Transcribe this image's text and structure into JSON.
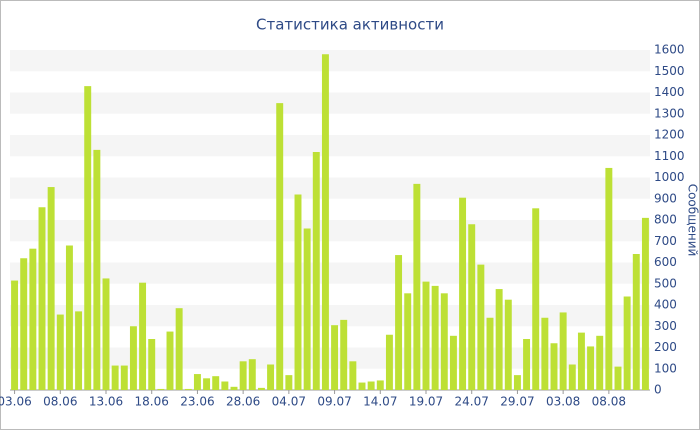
{
  "chart_data": {
    "type": "bar",
    "title": "Статистика активности",
    "y_label": "Сообщений",
    "categories": [
      "03.06",
      null,
      null,
      null,
      null,
      "08.06",
      null,
      null,
      null,
      null,
      "13.06",
      null,
      null,
      null,
      null,
      "18.06",
      null,
      null,
      null,
      null,
      "23.06",
      null,
      null,
      null,
      null,
      "28.06",
      null,
      null,
      null,
      null,
      "04.07",
      null,
      null,
      null,
      null,
      "09.07",
      null,
      null,
      null,
      null,
      "14.07",
      null,
      null,
      null,
      null,
      "19.07",
      null,
      null,
      null,
      null,
      "24.07",
      null,
      null,
      null,
      null,
      "29.07",
      null,
      null,
      null,
      null,
      "03.08",
      null,
      null,
      null,
      null,
      "08.08",
      null,
      null,
      null,
      null
    ],
    "values": [
      515,
      620,
      665,
      860,
      955,
      355,
      680,
      370,
      1430,
      1130,
      525,
      115,
      115,
      300,
      505,
      240,
      5,
      275,
      385,
      5,
      75,
      55,
      65,
      40,
      15,
      135,
      145,
      10,
      120,
      1350,
      70,
      920,
      760,
      1120,
      1580,
      305,
      330,
      135,
      35,
      40,
      45,
      260,
      635,
      455,
      970,
      510,
      490,
      455,
      255,
      905,
      780,
      590,
      340,
      475,
      425,
      70,
      240,
      855,
      340,
      220,
      365,
      120,
      270,
      205,
      255,
      1045,
      110,
      440,
      640,
      810
    ],
    "color": "#bde035",
    "ylim": [
      0,
      1600
    ],
    "yticks": [
      0,
      100,
      200,
      300,
      400,
      500,
      600,
      700,
      800,
      900,
      1000,
      1100,
      1200,
      1300,
      1400,
      1500,
      1600
    ],
    "grid": true
  }
}
